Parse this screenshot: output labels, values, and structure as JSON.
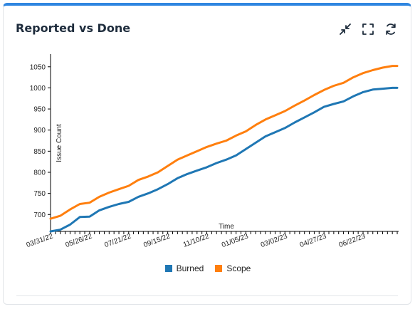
{
  "card": {
    "title": "Reported vs Done",
    "tools": {
      "collapse": "collapse-icon",
      "fullscreen": "fullscreen-icon",
      "refresh": "refresh-icon"
    }
  },
  "chart_data": {
    "type": "line",
    "title": "Reported vs Done",
    "xlabel": "Time",
    "ylabel": "Issue Count",
    "x_ticklabels": [
      "03/31/22",
      "05/26/22",
      "07/21/22",
      "09/15/22",
      "11/10/22",
      "01/05/23",
      "03/02/23",
      "04/27/23",
      "06/22/23"
    ],
    "y_ticks": [
      700,
      750,
      800,
      850,
      900,
      950,
      1000,
      1050
    ],
    "ylim": [
      660,
      1080
    ],
    "xlim": [
      "2022-03-31",
      "2023-08-12"
    ],
    "grid": false,
    "legend_position": "bottom",
    "x": [
      "2022-03-31",
      "2022-04-14",
      "2022-04-28",
      "2022-05-12",
      "2022-05-26",
      "2022-06-09",
      "2022-06-23",
      "2022-07-07",
      "2022-07-21",
      "2022-08-04",
      "2022-08-18",
      "2022-09-01",
      "2022-09-15",
      "2022-09-29",
      "2022-10-13",
      "2022-10-27",
      "2022-11-10",
      "2022-11-24",
      "2022-12-08",
      "2022-12-22",
      "2023-01-05",
      "2023-01-19",
      "2023-02-02",
      "2023-02-16",
      "2023-03-02",
      "2023-03-16",
      "2023-03-30",
      "2023-04-13",
      "2023-04-27",
      "2023-05-11",
      "2023-05-25",
      "2023-06-08",
      "2023-06-22",
      "2023-07-06",
      "2023-07-20",
      "2023-08-03",
      "2023-08-10"
    ],
    "series": [
      {
        "name": "Burned",
        "color": "#1f77b4",
        "values": [
          660,
          664,
          676,
          694,
          695,
          710,
          718,
          725,
          730,
          742,
          750,
          760,
          772,
          786,
          796,
          804,
          812,
          822,
          830,
          840,
          855,
          870,
          885,
          895,
          905,
          918,
          930,
          942,
          955,
          962,
          968,
          980,
          990,
          996,
          998,
          1000,
          1000
        ]
      },
      {
        "name": "Scope",
        "color": "#ff7f0e",
        "values": [
          690,
          697,
          712,
          725,
          728,
          742,
          752,
          760,
          768,
          782,
          790,
          800,
          815,
          830,
          840,
          850,
          860,
          868,
          875,
          887,
          897,
          912,
          925,
          935,
          945,
          958,
          970,
          983,
          995,
          1005,
          1012,
          1025,
          1035,
          1042,
          1048,
          1052,
          1052
        ]
      }
    ]
  }
}
